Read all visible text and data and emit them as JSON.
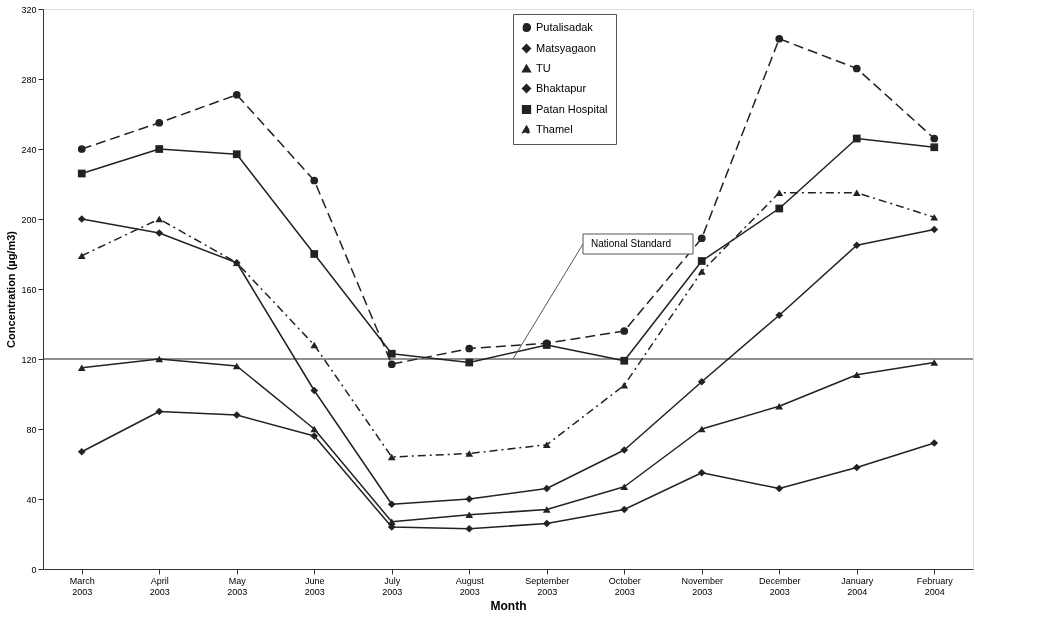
{
  "chart_data": {
    "type": "line",
    "xlabel": "Month",
    "ylabel": "Concentration (µg/m3)",
    "categories": [
      "March 2003",
      "April 2003",
      "May 2003",
      "June 2003",
      "July 2003",
      "August 2003",
      "September 2003",
      "October 2003",
      "November 2003",
      "December 2003",
      "January 2004",
      "February 2004"
    ],
    "series": [
      {
        "name": "Putalisadak",
        "color": "#222222",
        "marker": "circle",
        "line_style": "dashed",
        "values": [
          240,
          255,
          271,
          222,
          117,
          126,
          129,
          136,
          189,
          303,
          286,
          246
        ]
      },
      {
        "name": "Matsyagaon",
        "color": "#222222",
        "marker": "diamond",
        "line_style": "solid",
        "values": [
          67,
          90,
          88,
          76,
          24,
          23,
          26,
          34,
          55,
          46,
          58,
          72
        ]
      },
      {
        "name": "TU",
        "color": "#222222",
        "marker": "triangle",
        "line_style": "solid",
        "values": [
          115,
          120,
          116,
          80,
          27,
          31,
          34,
          47,
          80,
          93,
          111,
          118
        ]
      },
      {
        "name": "Bhaktapur",
        "color": "#222222",
        "marker": "diamond",
        "line_style": "solid",
        "values": [
          200,
          192,
          175,
          102,
          37,
          40,
          46,
          68,
          107,
          145,
          185,
          194
        ]
      },
      {
        "name": "Patan Hospital",
        "color": "#222222",
        "marker": "square",
        "line_style": "solid",
        "values": [
          226,
          240,
          237,
          180,
          123,
          118,
          128,
          119,
          176,
          206,
          246,
          241
        ]
      },
      {
        "name": "Thamel",
        "color": "#222222",
        "marker": "triangle",
        "line_style": "dotted",
        "values": [
          179,
          200,
          175,
          128,
          64,
          66,
          71,
          105,
          170,
          215,
          215,
          201
        ]
      }
    ],
    "ylim": [
      0,
      320
    ],
    "yticks": [
      0,
      40,
      80,
      120,
      160,
      200,
      240,
      280,
      320
    ],
    "ref_lines": [
      {
        "axis": "y",
        "value": 120,
        "label": "National Standard",
        "color": "#222222"
      }
    ],
    "grid": false,
    "legend": "top"
  }
}
